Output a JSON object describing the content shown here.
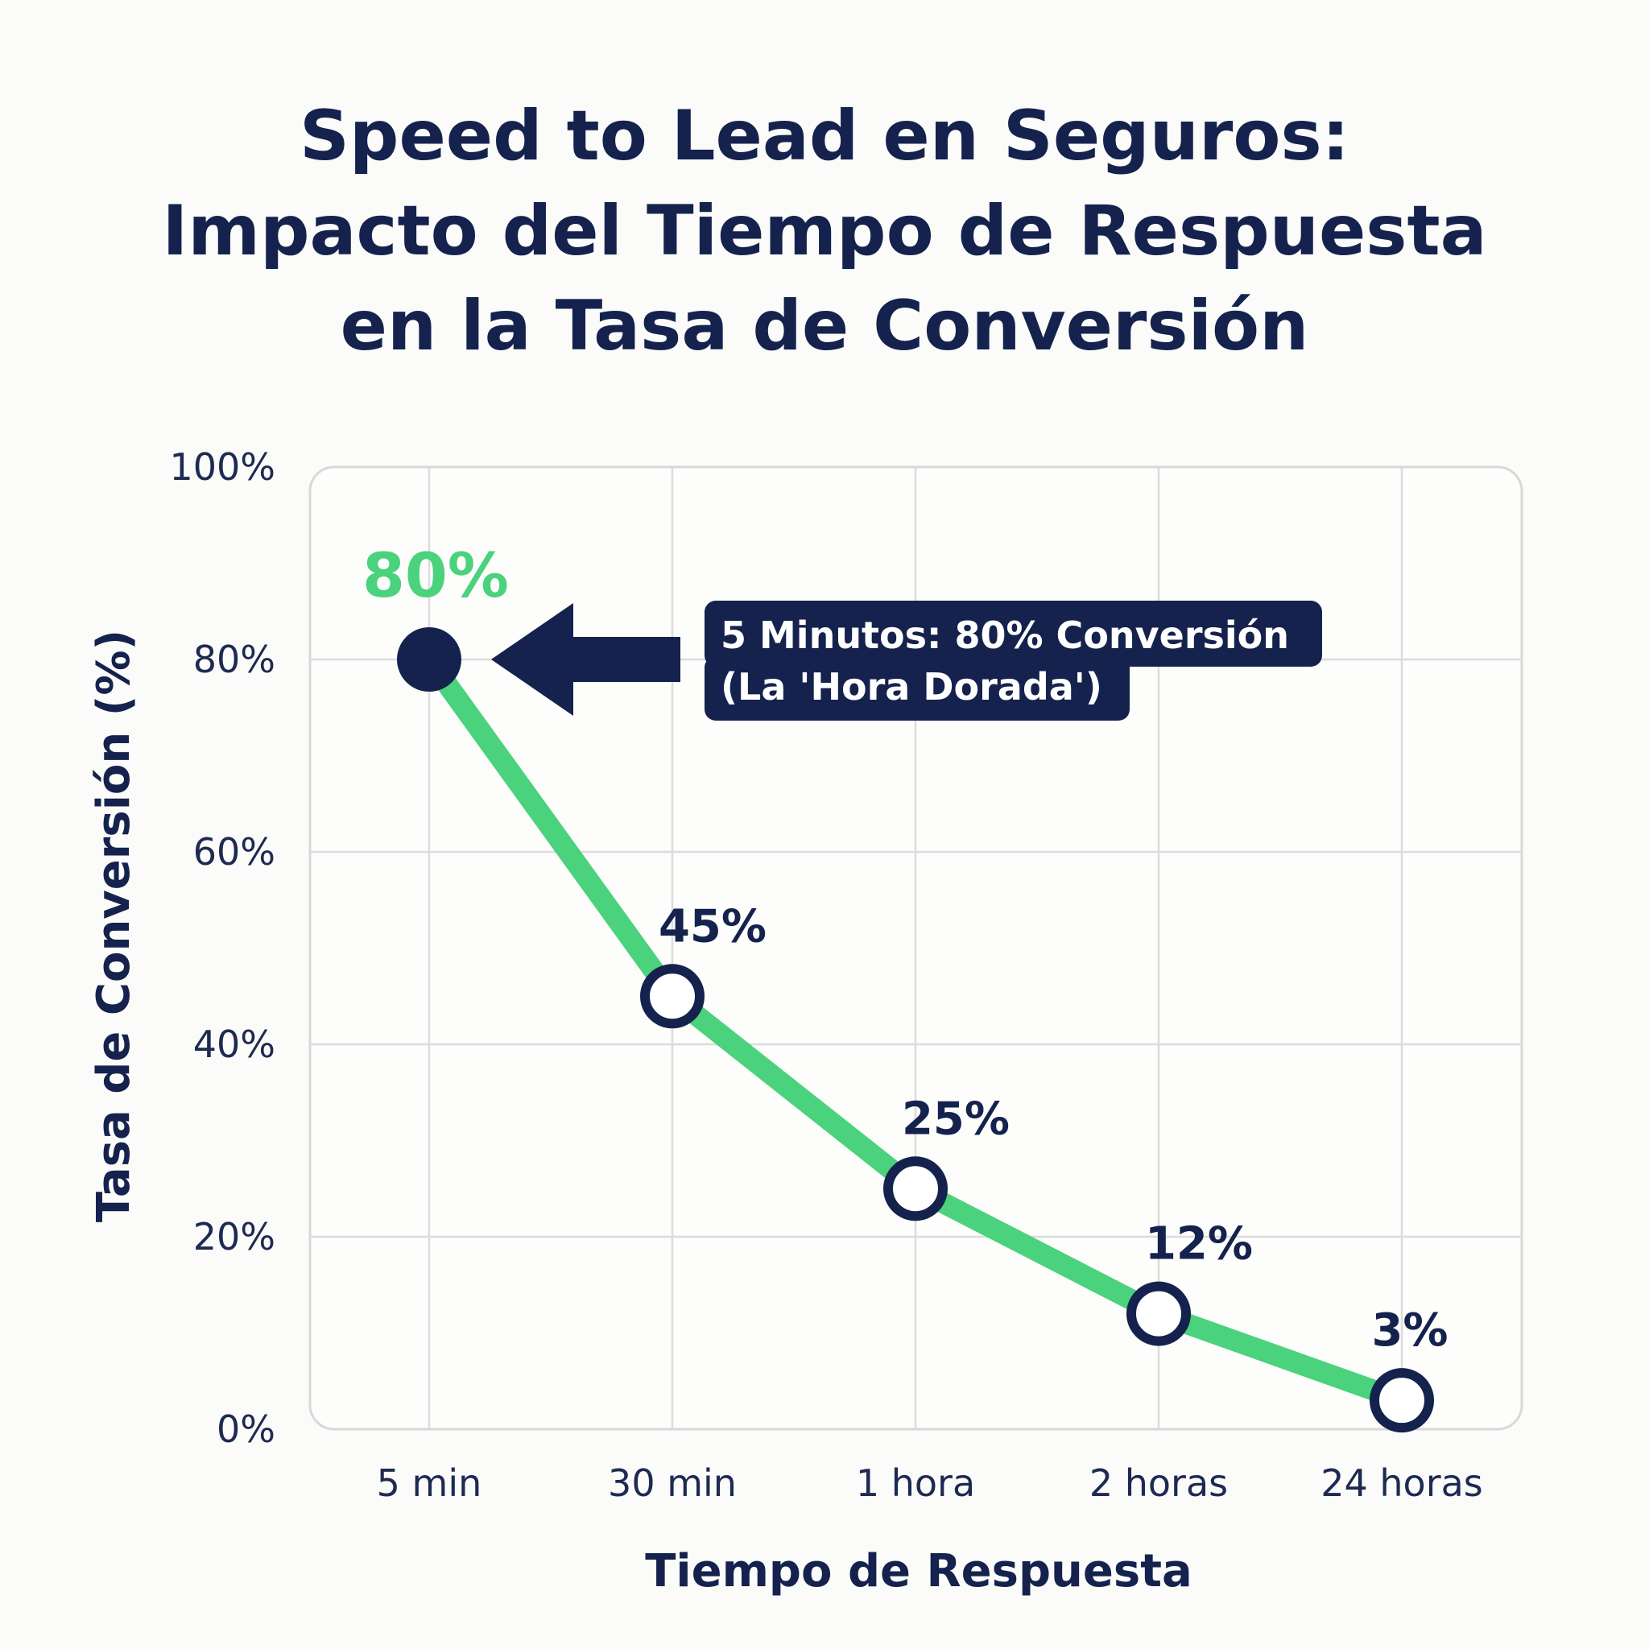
{
  "title_lines": [
    "Speed to Lead en Seguros:",
    "Impacto del Tiempo de Respuesta",
    "en la Tasa de Conversión"
  ],
  "colors": {
    "line": "#4bd27c",
    "marker": "#14224d",
    "highlight_label": "#4bd27c",
    "callout_bg": "#14224d"
  },
  "chart_data": {
    "type": "line",
    "categories": [
      "5 min",
      "30 min",
      "1 hora",
      "2 horas",
      "24 horas"
    ],
    "values": [
      80,
      45,
      25,
      12,
      3
    ],
    "data_labels": [
      "80%",
      "45%",
      "25%",
      "12%",
      "3%"
    ],
    "title": "Speed to Lead en Seguros: Impacto del Tiempo de Respuesta en la Tasa de Conversión",
    "xlabel": "Tiempo de Respuesta",
    "ylabel": "Tasa de Conversión (%)",
    "ylim": [
      0,
      100
    ],
    "yticks": [
      0,
      20,
      40,
      60,
      80,
      100
    ],
    "ytick_labels": [
      "0%",
      "20%",
      "40%",
      "60%",
      "80%",
      "100%"
    ],
    "grid": true,
    "annotation": {
      "category": "5 min",
      "value": 80,
      "lines": [
        "5 Minutos: 80% Conversión",
        "(La 'Hora Dorada')"
      ]
    }
  }
}
